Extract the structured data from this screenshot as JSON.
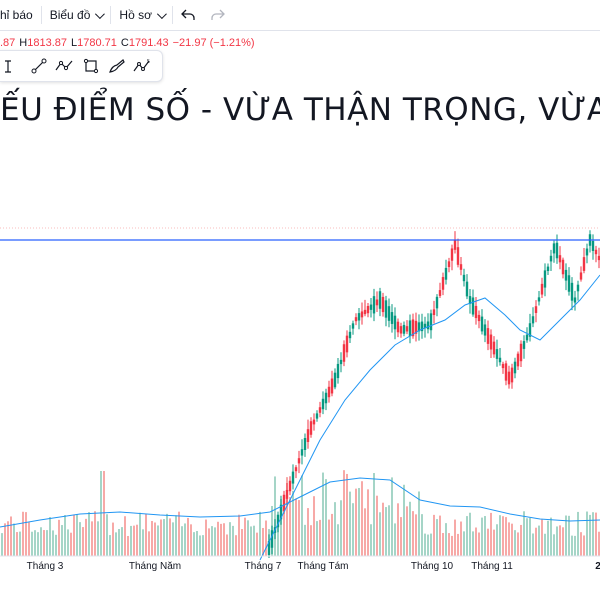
{
  "toolbar": {
    "alert_label": "hỉ báo",
    "chart_label": "Biểu đồ",
    "profile_label": "Hồ sơ",
    "undo_icon": "undo-icon",
    "redo_icon": "redo-icon"
  },
  "ohlc": {
    "open_tail": ".87",
    "high_key": "H",
    "high_value": "1813.87",
    "low_key": "L",
    "low_value": "1780.71",
    "close_key": "C",
    "close_value": "1791.43",
    "change": "−21.97 (−1.21%)"
  },
  "drawing_tools": [
    "trend-line-icon",
    "ray-icon",
    "path-icon",
    "rectangle-icon",
    "brush-icon",
    "elliott-wave-icon"
  ],
  "headline": "ẾU ĐIỂM SỐ - VỪA THẬN TRỌNG, VỪA CANH",
  "colors": {
    "up": "#089981",
    "down": "#f23645",
    "volume_up": "#a5d5c7",
    "volume_down": "#f7a9a7",
    "ma": "#2196f3",
    "level_line": "#2962ff"
  },
  "time_axis": [
    "Tháng 3",
    "Tháng Năm",
    "Tháng 7",
    "Tháng Tám",
    "Tháng 10",
    "Tháng 11",
    "2"
  ],
  "chart_data": {
    "type": "candlestick",
    "title": "",
    "xlabel": "",
    "ylabel": "",
    "horizontal_level": "resistance line near recent highs",
    "series": [
      {
        "name": "",
        "values": []
      }
    ],
    "x_ticks": [
      "Tháng 3",
      "Tháng Năm",
      "Tháng 7",
      "Tháng Tám",
      "Tháng 10",
      "Tháng 11",
      "2"
    ]
  }
}
